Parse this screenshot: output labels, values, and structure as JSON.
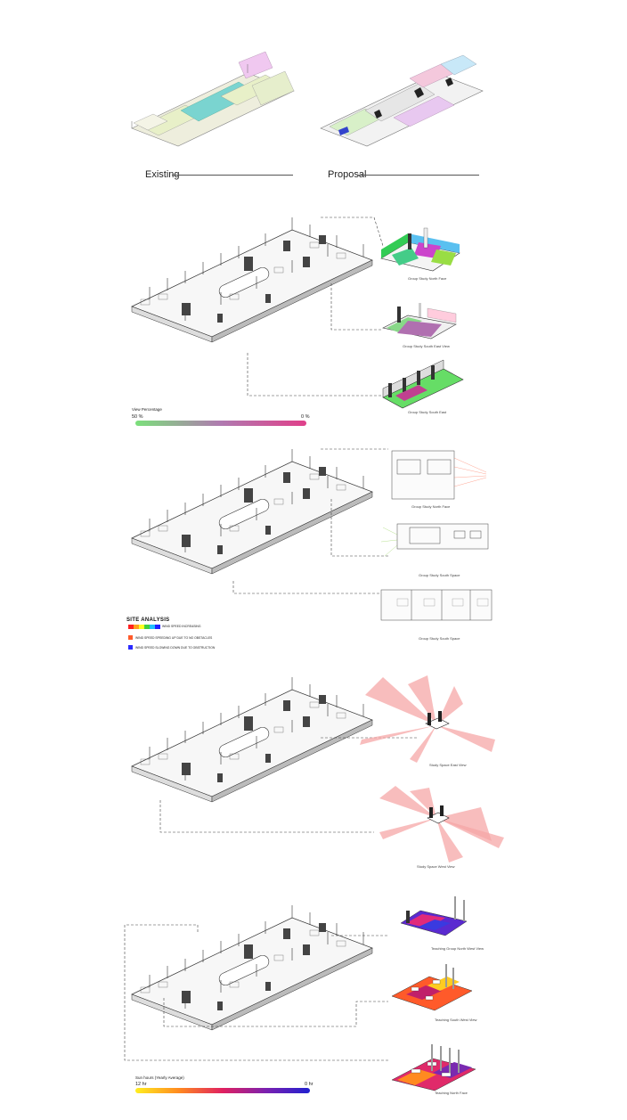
{
  "comparison": {
    "existing_label": "Existing",
    "proposal_label": "Proposal"
  },
  "view_panel": {
    "captions": [
      "Group Study North Face",
      "Group Study South East View",
      "Group Study South East"
    ],
    "legend_title": "View Percentage",
    "legend_max": "50 %",
    "legend_min": "0 %",
    "gradient_colors": [
      "#7be07b",
      "#b07ab0",
      "#e0408a"
    ]
  },
  "wind_panel": {
    "captions": [
      "Group Study North Face",
      "Group Study South Space",
      "Group Study South Space"
    ],
    "title": "SITE ANALYSIS",
    "scale_label": "WIND SPEED INCREASING",
    "increase_note": "WIND SPEED SPEEDING UP DUE TO NO OBSTACLES",
    "decrease_note": "WIND SPEED SLOWING DOWN DUE TO OBSTRUCTION",
    "scale_colors": [
      "#ff2020",
      "#ffa020",
      "#ffff20",
      "#40d040",
      "#20c0ff",
      "#2020ff"
    ],
    "increase_color": "#ff5a2a",
    "decrease_color": "#2a2aff"
  },
  "view_cone_panel": {
    "captions": [
      "Study Space East View",
      "Study Space West View"
    ],
    "cone_color": "#f6a7a7"
  },
  "sun_panel": {
    "captions": [
      "Teaching Group North West View",
      "Teaching South West View",
      "Teaching North Face"
    ],
    "legend_title": "Sun hours (Yearly Average)",
    "legend_max": "12 hr",
    "legend_min": "0 hr",
    "gradient_colors": [
      "#ffee20",
      "#ff8a20",
      "#e02060",
      "#7a20b0",
      "#2020d0"
    ]
  }
}
